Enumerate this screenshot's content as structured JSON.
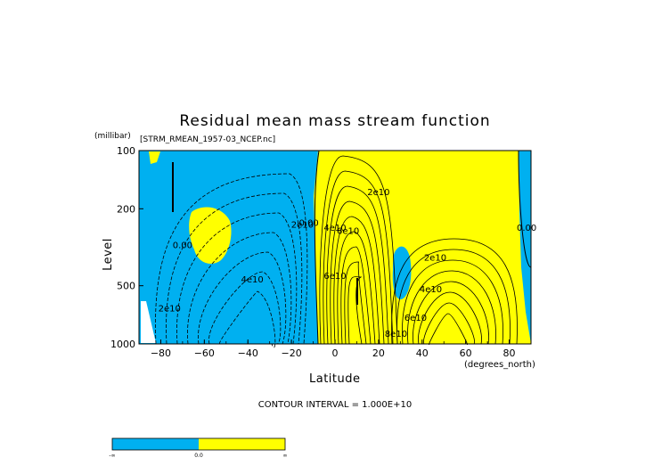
{
  "chart_data": {
    "type": "contour",
    "title": "Residual mean mass stream function",
    "source_label": "[STRM_RMEAN_1957-03_NCEP.nc]",
    "xlabel": "Latitude",
    "x_units": "(degrees_north)",
    "ylabel": "Level",
    "y_units": "(millibar)",
    "xlim": [
      -90,
      90
    ],
    "ylim": [
      1000,
      100
    ],
    "y_scale": "log",
    "x_ticks": [
      -80,
      -60,
      -40,
      -20,
      0,
      20,
      40,
      60,
      80
    ],
    "x_tick_labels": [
      "−80",
      "−60",
      "−40",
      "−20",
      "0",
      "20",
      "40",
      "60",
      "80"
    ],
    "y_ticks": [
      100,
      200,
      500,
      1000
    ],
    "contour_interval": "CONTOUR INTERVAL = 1.000E+10",
    "contour_labels": [
      {
        "text": "0.00",
        "lat": -70,
        "p": 320
      },
      {
        "text": "2e10",
        "lat": -76,
        "p": 680
      },
      {
        "text": "4e10",
        "lat": -38,
        "p": 480
      },
      {
        "text": "2e10",
        "lat": -15,
        "p": 250
      },
      {
        "text": "0.00",
        "lat": -12,
        "p": 245
      },
      {
        "text": "2e10",
        "lat": 20,
        "p": 170
      },
      {
        "text": "4e10",
        "lat": 0,
        "p": 260
      },
      {
        "text": "6e10",
        "lat": 6,
        "p": 270
      },
      {
        "text": "6e10",
        "lat": 0,
        "p": 460
      },
      {
        "text": "8e10",
        "lat": 28,
        "p": 920
      },
      {
        "text": "6e10",
        "lat": 37,
        "p": 760
      },
      {
        "text": "4e10",
        "lat": 44,
        "p": 540
      },
      {
        "text": "2e10",
        "lat": 46,
        "p": 370
      },
      {
        "text": "0.00",
        "lat": 88,
        "p": 260
      }
    ],
    "colorbar": {
      "colors": [
        "#00b0f0",
        "#ffff00"
      ],
      "labels": [
        "-∞",
        "0.0",
        "∞"
      ]
    }
  }
}
